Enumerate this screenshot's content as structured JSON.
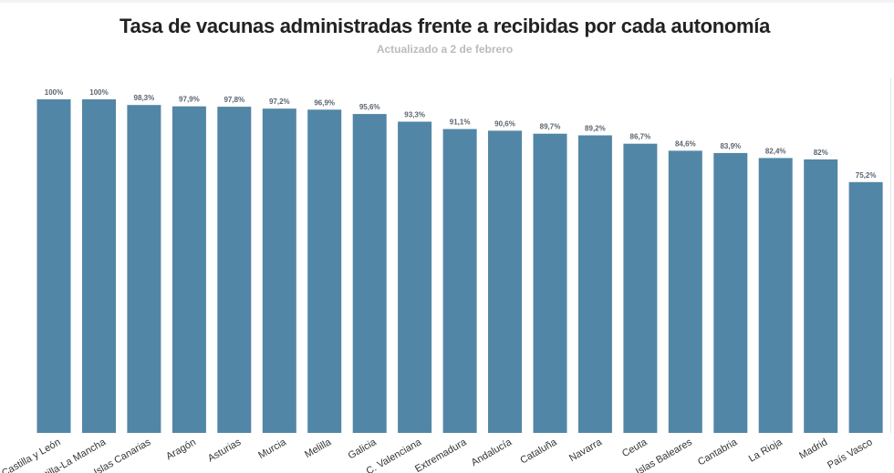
{
  "title": "Tasa de vacunas administradas frente a recibidas por cada autonomía",
  "subtitle": "Actualizado a 2 de febrero",
  "colors": {
    "bar": "#5286a6",
    "value_label": "#5a6470",
    "category_label": "#333333"
  },
  "chart_data": {
    "type": "bar",
    "title": "Tasa de vacunas administradas frente a recibidas por cada autonomía",
    "subtitle": "Actualizado a 2 de febrero",
    "xlabel": "",
    "ylabel": "",
    "ylim": [
      0,
      100
    ],
    "grid": false,
    "categories": [
      "Castilla y León",
      "Castilla-La Mancha",
      "Islas Canarias",
      "Aragón",
      "Asturias",
      "Murcia",
      "Melilla",
      "Galicia",
      "C. Valenciana",
      "Extremadura",
      "Andalucía",
      "Cataluña",
      "Navarra",
      "Ceuta",
      "Islas Baleares",
      "Cantabria",
      "La Rioja",
      "Madrid",
      "País Vasco"
    ],
    "values": [
      100,
      100,
      98.3,
      97.9,
      97.8,
      97.2,
      96.9,
      95.6,
      93.3,
      91.1,
      90.6,
      89.7,
      89.2,
      86.7,
      84.6,
      83.9,
      82.4,
      82,
      75.2
    ],
    "value_labels": [
      "100%",
      "100%",
      "98,3%",
      "97,9%",
      "97,8%",
      "97,2%",
      "96,9%",
      "95,6%",
      "93,3%",
      "91,1%",
      "90,6%",
      "89,7%",
      "89,2%",
      "86,7%",
      "84,6%",
      "83,9%",
      "82,4%",
      "82%",
      "75,2%"
    ]
  }
}
